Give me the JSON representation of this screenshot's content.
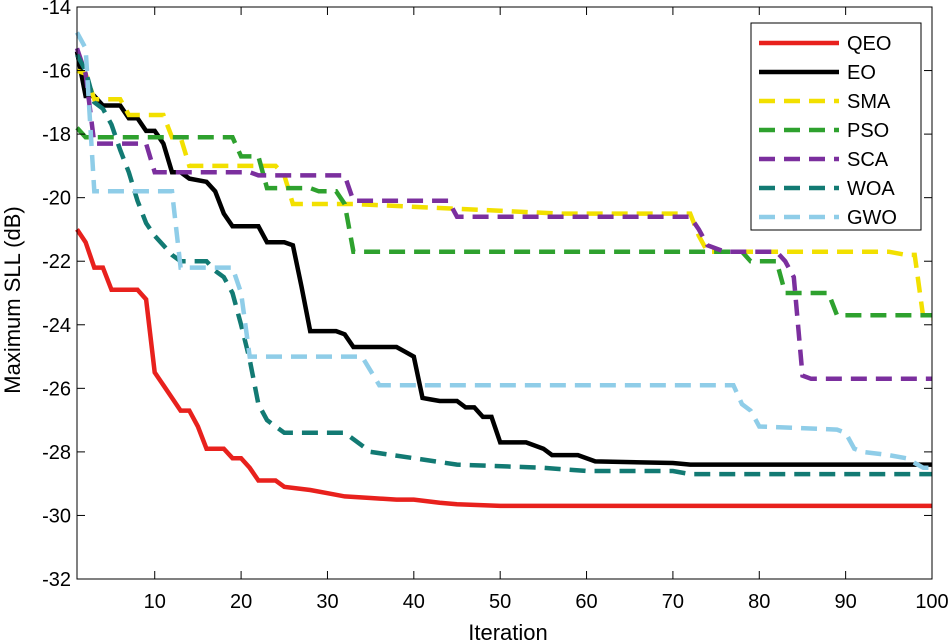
{
  "chart_data": {
    "type": "line",
    "xlabel": "Iteration",
    "ylabel": "Maximum SLL (dB)",
    "xlim": [
      1,
      100
    ],
    "ylim": [
      -32,
      -14
    ],
    "xticks": [
      10,
      20,
      30,
      40,
      50,
      60,
      70,
      80,
      90,
      100
    ],
    "yticks": [
      -32,
      -30,
      -28,
      -26,
      -24,
      -22,
      -20,
      -18,
      -16,
      -14
    ],
    "legend_position": "top-right",
    "series": [
      {
        "name": "QEO",
        "color": "#e8211d",
        "style": "solid",
        "points": [
          [
            1,
            -21
          ],
          [
            2,
            -21.4
          ],
          [
            3,
            -22.2
          ],
          [
            4,
            -22.2
          ],
          [
            5,
            -22.9
          ],
          [
            8,
            -22.9
          ],
          [
            9,
            -23.2
          ],
          [
            10,
            -25.5
          ],
          [
            11,
            -25.9
          ],
          [
            12,
            -26.3
          ],
          [
            13,
            -26.7
          ],
          [
            14,
            -26.7
          ],
          [
            15,
            -27.2
          ],
          [
            16,
            -27.9
          ],
          [
            18,
            -27.9
          ],
          [
            19,
            -28.2
          ],
          [
            20,
            -28.2
          ],
          [
            21,
            -28.5
          ],
          [
            22,
            -28.9
          ],
          [
            24,
            -28.9
          ],
          [
            25,
            -29.1
          ],
          [
            28,
            -29.2
          ],
          [
            30,
            -29.3
          ],
          [
            32,
            -29.4
          ],
          [
            35,
            -29.45
          ],
          [
            38,
            -29.5
          ],
          [
            40,
            -29.5
          ],
          [
            43,
            -29.6
          ],
          [
            45,
            -29.65
          ],
          [
            50,
            -29.7
          ],
          [
            100,
            -29.7
          ]
        ]
      },
      {
        "name": "EO",
        "color": "#000000",
        "style": "solid",
        "points": [
          [
            1,
            -15.4
          ],
          [
            2,
            -16.8
          ],
          [
            3,
            -16.8
          ],
          [
            4,
            -17.1
          ],
          [
            6,
            -17.1
          ],
          [
            7,
            -17.5
          ],
          [
            8,
            -17.5
          ],
          [
            9,
            -17.9
          ],
          [
            10,
            -17.9
          ],
          [
            11,
            -18.3
          ],
          [
            12,
            -19.2
          ],
          [
            13,
            -19.2
          ],
          [
            14,
            -19.4
          ],
          [
            16,
            -19.5
          ],
          [
            17,
            -19.8
          ],
          [
            18,
            -20.5
          ],
          [
            19,
            -20.9
          ],
          [
            22,
            -20.9
          ],
          [
            23,
            -21.4
          ],
          [
            25,
            -21.4
          ],
          [
            26,
            -21.5
          ],
          [
            27,
            -22.8
          ],
          [
            28,
            -24.2
          ],
          [
            31,
            -24.2
          ],
          [
            32,
            -24.3
          ],
          [
            33,
            -24.7
          ],
          [
            38,
            -24.7
          ],
          [
            39,
            -24.85
          ],
          [
            40,
            -25
          ],
          [
            41,
            -26.3
          ],
          [
            42,
            -26.35
          ],
          [
            43,
            -26.4
          ],
          [
            45,
            -26.4
          ],
          [
            46,
            -26.6
          ],
          [
            47,
            -26.6
          ],
          [
            48,
            -26.9
          ],
          [
            49,
            -26.9
          ],
          [
            50,
            -27.7
          ],
          [
            53,
            -27.7
          ],
          [
            55,
            -27.9
          ],
          [
            56,
            -28.1
          ],
          [
            59,
            -28.1
          ],
          [
            61,
            -28.3
          ],
          [
            70,
            -28.35
          ],
          [
            72,
            -28.4
          ],
          [
            100,
            -28.4
          ]
        ]
      },
      {
        "name": "SMA",
        "color": "#f2e000",
        "style": "dashed",
        "points": [
          [
            1,
            -16
          ],
          [
            2,
            -16.1
          ],
          [
            3,
            -16.9
          ],
          [
            6,
            -16.9
          ],
          [
            7,
            -17.4
          ],
          [
            11,
            -17.4
          ],
          [
            12,
            -18.1
          ],
          [
            13,
            -18.1
          ],
          [
            14,
            -19
          ],
          [
            24,
            -19
          ],
          [
            25,
            -19.3
          ],
          [
            26,
            -20.2
          ],
          [
            32,
            -20.2
          ],
          [
            33,
            -20.2
          ],
          [
            57,
            -20.5
          ],
          [
            72,
            -20.5
          ],
          [
            73,
            -21.2
          ],
          [
            74,
            -21.7
          ],
          [
            95,
            -21.7
          ],
          [
            97,
            -21.8
          ],
          [
            98,
            -21.8
          ],
          [
            99,
            -23.8
          ],
          [
            100,
            -23.8
          ]
        ]
      },
      {
        "name": "PSO",
        "color": "#2ea12e",
        "style": "dashed",
        "points": [
          [
            1,
            -17.8
          ],
          [
            2,
            -18.1
          ],
          [
            19,
            -18.1
          ],
          [
            20,
            -18.7
          ],
          [
            22,
            -18.7
          ],
          [
            23,
            -19.7
          ],
          [
            28,
            -19.7
          ],
          [
            29,
            -19.8
          ],
          [
            31,
            -19.8
          ],
          [
            32,
            -20.2
          ],
          [
            33,
            -21.7
          ],
          [
            61,
            -21.7
          ],
          [
            78,
            -21.7
          ],
          [
            79,
            -22
          ],
          [
            82,
            -22
          ],
          [
            83,
            -23
          ],
          [
            87,
            -23
          ],
          [
            88,
            -23
          ],
          [
            89,
            -23.7
          ],
          [
            100,
            -23.7
          ]
        ]
      },
      {
        "name": "SCA",
        "color": "#7b2f9e",
        "style": "dashed",
        "points": [
          [
            1,
            -15.3
          ],
          [
            2,
            -16.1
          ],
          [
            3,
            -18.3
          ],
          [
            9,
            -18.3
          ],
          [
            10,
            -19.2
          ],
          [
            21,
            -19.2
          ],
          [
            22,
            -19.3
          ],
          [
            32,
            -19.3
          ],
          [
            33,
            -20.1
          ],
          [
            44,
            -20.1
          ],
          [
            45,
            -20.6
          ],
          [
            72,
            -20.6
          ],
          [
            73,
            -21
          ],
          [
            74,
            -21.5
          ],
          [
            76,
            -21.7
          ],
          [
            82,
            -21.7
          ],
          [
            83,
            -22
          ],
          [
            84,
            -22.5
          ],
          [
            85,
            -25.6
          ],
          [
            86,
            -25.7
          ],
          [
            100,
            -25.7
          ]
        ]
      },
      {
        "name": "WOA",
        "color": "#127a73",
        "style": "dashed",
        "points": [
          [
            1,
            -15.5
          ],
          [
            2,
            -16
          ],
          [
            3,
            -17
          ],
          [
            4,
            -17.2
          ],
          [
            5,
            -17.7
          ],
          [
            6,
            -18.5
          ],
          [
            7,
            -19.2
          ],
          [
            8,
            -20.1
          ],
          [
            9,
            -20.8
          ],
          [
            10,
            -21.2
          ],
          [
            11,
            -21.5
          ],
          [
            12,
            -21.8
          ],
          [
            13,
            -22
          ],
          [
            16,
            -22
          ],
          [
            17,
            -22.3
          ],
          [
            18,
            -22.5
          ],
          [
            19,
            -23
          ],
          [
            20,
            -24
          ],
          [
            21,
            -25.1
          ],
          [
            22,
            -26.5
          ],
          [
            23,
            -27
          ],
          [
            24,
            -27.2
          ],
          [
            25,
            -27.4
          ],
          [
            32,
            -27.4
          ],
          [
            33,
            -27.6
          ],
          [
            35,
            -28
          ],
          [
            40,
            -28.2
          ],
          [
            45,
            -28.4
          ],
          [
            55,
            -28.5
          ],
          [
            60,
            -28.6
          ],
          [
            70,
            -28.6
          ],
          [
            72,
            -28.7
          ],
          [
            100,
            -28.7
          ]
        ]
      },
      {
        "name": "GWO",
        "color": "#8fcde8",
        "style": "dashed",
        "points": [
          [
            1,
            -14.8
          ],
          [
            2,
            -15.3
          ],
          [
            3,
            -19.8
          ],
          [
            12,
            -19.8
          ],
          [
            13,
            -22.2
          ],
          [
            19,
            -22.2
          ],
          [
            20,
            -23
          ],
          [
            21,
            -25
          ],
          [
            34,
            -25
          ],
          [
            36,
            -25.9
          ],
          [
            77,
            -25.9
          ],
          [
            78,
            -26.5
          ],
          [
            79,
            -26.7
          ],
          [
            80,
            -27.2
          ],
          [
            89,
            -27.3
          ],
          [
            90,
            -27.4
          ],
          [
            91,
            -27.9
          ],
          [
            92,
            -28
          ],
          [
            95,
            -28.1
          ],
          [
            97,
            -28.2
          ],
          [
            99,
            -28.5
          ],
          [
            100,
            -28.5
          ]
        ]
      }
    ]
  }
}
